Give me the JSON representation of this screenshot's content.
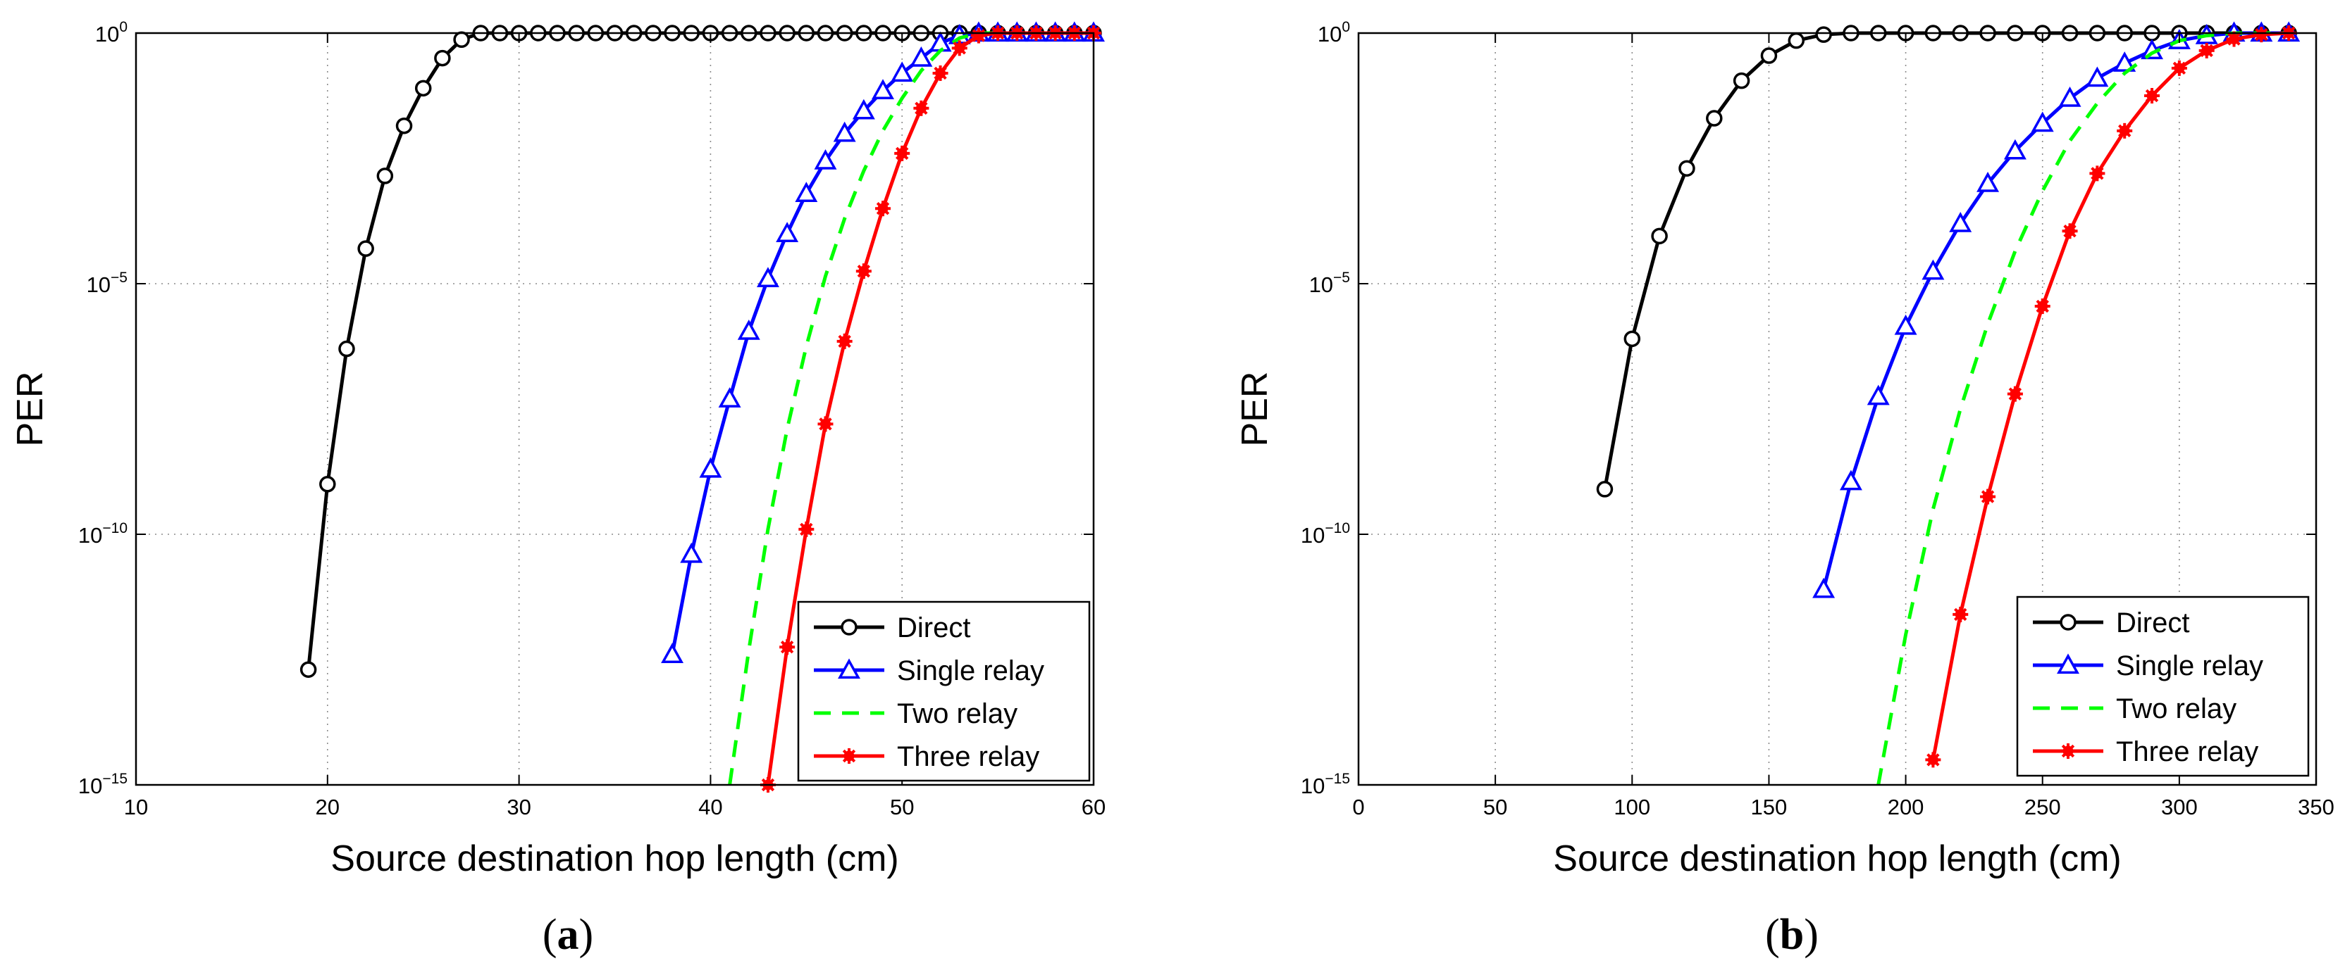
{
  "chart_data": [
    {
      "type": "line",
      "sublabel": "a",
      "xlabel": "Source destination hop length (cm)",
      "ylabel": "PER",
      "xlim": [
        10,
        60
      ],
      "xticks": [
        10,
        20,
        30,
        40,
        50,
        60
      ],
      "yscale": "log",
      "ylim_exp": [
        -15,
        0
      ],
      "yticks_exp": [
        0,
        -5,
        -10,
        -15
      ],
      "ytick_base": "10",
      "grid": true,
      "legend_position": "bottom-right",
      "series": [
        {
          "name": "Direct",
          "color": "#000000",
          "dash": "solid",
          "marker": "circle",
          "x": [
            19,
            20,
            21,
            22,
            23,
            24,
            25,
            26,
            27,
            28,
            29,
            30,
            31,
            32,
            33,
            34,
            35,
            36,
            37,
            38,
            39,
            40,
            41,
            42,
            43,
            44,
            45,
            46,
            47,
            48,
            49,
            50,
            51,
            52,
            53,
            54,
            55,
            56,
            57,
            58,
            59,
            60
          ],
          "y_exp": [
            -12.7,
            -9.0,
            -6.3,
            -4.3,
            -2.85,
            -1.85,
            -1.1,
            -0.5,
            -0.13,
            0,
            0,
            0,
            0,
            0,
            0,
            0,
            0,
            0,
            0,
            0,
            0,
            0,
            0,
            0,
            0,
            0,
            0,
            0,
            0,
            0,
            0,
            0,
            0,
            0,
            0,
            0,
            0,
            0,
            0,
            0,
            0,
            0
          ]
        },
        {
          "name": "Single relay",
          "color": "#0000ff",
          "dash": "solid",
          "marker": "triangle",
          "x": [
            38,
            39,
            40,
            41,
            42,
            43,
            44,
            45,
            46,
            47,
            48,
            49,
            50,
            51,
            52,
            53,
            54,
            55,
            56,
            57,
            58,
            59,
            60
          ],
          "y_exp": [
            -12.4,
            -10.4,
            -8.7,
            -7.3,
            -5.95,
            -4.9,
            -4.0,
            -3.2,
            -2.55,
            -2.0,
            -1.55,
            -1.15,
            -0.8,
            -0.5,
            -0.2,
            -0.05,
            0,
            0,
            0,
            0,
            0,
            0,
            0
          ]
        },
        {
          "name": "Two relay",
          "color": "#00ff00",
          "dash": "dashed",
          "marker": "none",
          "x": [
            41,
            42,
            43,
            44,
            45,
            46,
            47,
            48,
            49,
            50,
            51,
            52,
            53,
            54,
            55,
            56,
            57,
            58,
            59,
            60
          ],
          "y_exp": [
            -15,
            -12.3,
            -9.9,
            -7.9,
            -6.25,
            -4.85,
            -3.7,
            -2.75,
            -1.95,
            -1.3,
            -0.75,
            -0.35,
            -0.1,
            0,
            0,
            0,
            0,
            0,
            0,
            0
          ]
        },
        {
          "name": "Three relay",
          "color": "#ff0000",
          "dash": "solid",
          "marker": "asterisk",
          "x": [
            43,
            44,
            45,
            46,
            47,
            48,
            49,
            50,
            51,
            52,
            53,
            54,
            55,
            56,
            57,
            58,
            59,
            60
          ],
          "y_exp": [
            -15,
            -12.25,
            -9.9,
            -7.8,
            -6.15,
            -4.75,
            -3.5,
            -2.4,
            -1.5,
            -0.8,
            -0.3,
            -0.05,
            0,
            0,
            0,
            0,
            0,
            0
          ]
        }
      ]
    },
    {
      "type": "line",
      "sublabel": "b",
      "xlabel": "Source destination hop length (cm)",
      "ylabel": "PER",
      "xlim": [
        0,
        350
      ],
      "xticks": [
        0,
        50,
        100,
        150,
        200,
        250,
        300,
        350
      ],
      "yscale": "log",
      "ylim_exp": [
        -15,
        0
      ],
      "yticks_exp": [
        0,
        -5,
        -10,
        -15
      ],
      "ytick_base": "10",
      "grid": true,
      "legend_position": "bottom-right",
      "series": [
        {
          "name": "Direct",
          "color": "#000000",
          "dash": "solid",
          "marker": "circle",
          "x": [
            90,
            100,
            110,
            120,
            130,
            140,
            150,
            160,
            170,
            180,
            190,
            200,
            210,
            220,
            230,
            240,
            250,
            260,
            270,
            280,
            290,
            300,
            310,
            320,
            330,
            340
          ],
          "y_exp": [
            -9.1,
            -6.1,
            -4.05,
            -2.7,
            -1.7,
            -0.95,
            -0.45,
            -0.15,
            -0.03,
            0,
            0,
            0,
            0,
            0,
            0,
            0,
            0,
            0,
            0,
            0,
            0,
            0,
            0,
            0,
            0,
            0
          ]
        },
        {
          "name": "Single relay",
          "color": "#0000ff",
          "dash": "solid",
          "marker": "triangle",
          "x": [
            170,
            180,
            190,
            200,
            210,
            220,
            230,
            240,
            250,
            260,
            270,
            280,
            290,
            300,
            310,
            320,
            330,
            340
          ],
          "y_exp": [
            -11.1,
            -8.95,
            -7.25,
            -5.85,
            -4.75,
            -3.8,
            -3.0,
            -2.35,
            -1.8,
            -1.3,
            -0.9,
            -0.6,
            -0.35,
            -0.15,
            -0.05,
            0,
            0,
            0
          ]
        },
        {
          "name": "Two relay",
          "color": "#00ff00",
          "dash": "dashed",
          "marker": "none",
          "x": [
            190,
            200,
            210,
            220,
            230,
            240,
            250,
            260,
            270,
            280,
            290,
            300,
            310,
            320,
            330,
            340
          ],
          "y_exp": [
            -15,
            -12.0,
            -9.5,
            -7.5,
            -5.8,
            -4.35,
            -3.15,
            -2.15,
            -1.4,
            -0.8,
            -0.4,
            -0.15,
            -0.05,
            0,
            0,
            0
          ]
        },
        {
          "name": "Three relay",
          "color": "#ff0000",
          "dash": "solid",
          "marker": "asterisk",
          "x": [
            210,
            220,
            230,
            240,
            250,
            260,
            270,
            280,
            290,
            300,
            310,
            320,
            330,
            340
          ],
          "y_exp": [
            -14.5,
            -11.6,
            -9.25,
            -7.2,
            -5.45,
            -3.95,
            -2.8,
            -1.95,
            -1.25,
            -0.7,
            -0.35,
            -0.12,
            -0.03,
            0
          ]
        }
      ]
    }
  ]
}
